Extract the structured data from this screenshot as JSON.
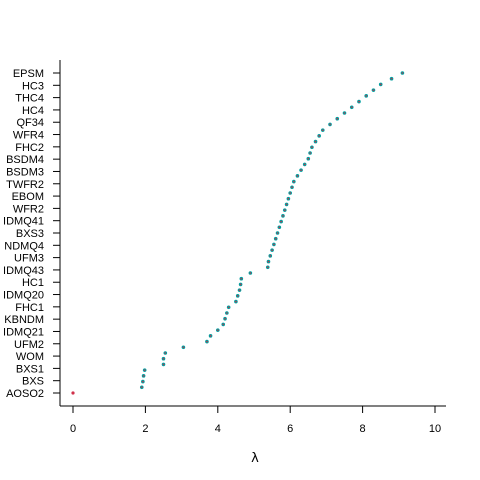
{
  "chart_data": {
    "type": "scatter",
    "title": "",
    "xlabel": "λ",
    "ylabel": "",
    "xlim": [
      0,
      10
    ],
    "x_ticks": [
      0,
      2,
      4,
      6,
      8,
      10
    ],
    "grid": false,
    "labels": [
      "EPSM",
      "HC3",
      "THC4",
      "HC4",
      "QF34",
      "WFR4",
      "FHC2",
      "BSDM4",
      "BSDM3",
      "TWFR2",
      "EBOM",
      "WFR2",
      "IDMQ41",
      "BXS3",
      "NDMQ4",
      "UFM3",
      "IDMQ43",
      "HC1",
      "IDMQ20",
      "FHC1",
      "KBNDM",
      "IDMQ21",
      "UFM2",
      "WOM",
      "BXS1",
      "BXS",
      "AOSO2"
    ],
    "points_top_to_bottom": [
      9.1,
      8.8,
      8.5,
      8.3,
      8.1,
      7.9,
      7.7,
      7.5,
      7.3,
      7.1,
      6.9,
      6.8,
      6.7,
      6.6,
      6.55,
      6.5,
      6.4,
      6.3,
      6.2,
      6.1,
      6.05,
      6.0,
      5.95,
      5.9,
      5.85,
      5.8,
      5.75,
      5.7,
      5.65,
      5.6,
      5.55,
      5.5,
      5.45,
      5.4,
      5.38,
      4.9,
      4.65,
      4.63,
      4.6,
      4.55,
      4.5,
      4.3,
      4.25,
      4.2,
      4.15,
      4.0,
      3.8,
      3.7,
      3.05,
      2.55,
      2.5,
      2.5,
      1.98,
      1.95,
      1.93,
      1.9,
      0.0
    ],
    "marker_colors": [
      "#00a0a0",
      "#c0304a"
    ],
    "special_point_color": "#d0304a"
  }
}
